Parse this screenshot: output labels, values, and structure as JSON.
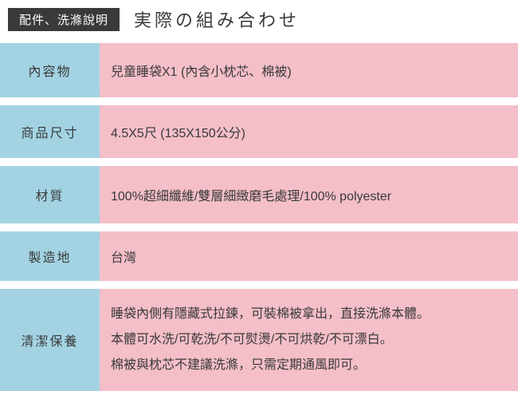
{
  "header": {
    "badge": "配件、洗滌說明",
    "title": "実際の組み合わせ"
  },
  "colors": {
    "badge_bg": "#3a3a3a",
    "badge_text": "#ffffff",
    "label_bg": "#a3d3e3",
    "value_bg": "#f4bfc8",
    "text": "#3a3a3a",
    "page_bg": "#ffffff"
  },
  "table": {
    "rows": [
      {
        "label": "內容物",
        "value": "兒童睡袋X1 (內含小枕芯、棉被)"
      },
      {
        "label": "商品尺寸",
        "value": "4.5X5尺 (135X150公分)"
      },
      {
        "label": "材質",
        "value": "100%超細纖維/雙層細緻磨毛處理/100% polyester"
      },
      {
        "label": "製造地",
        "value": "台灣"
      },
      {
        "label": "清潔保養",
        "lines": [
          "睡袋內側有隱藏式拉鍊，可裝棉被拿出，直接洗滌本體。",
          "本體可水洗/可乾洗/不可熨燙/不可烘乾/不可漂白。",
          "棉被與枕芯不建議洗滌，只需定期通風即可。"
        ]
      }
    ]
  }
}
